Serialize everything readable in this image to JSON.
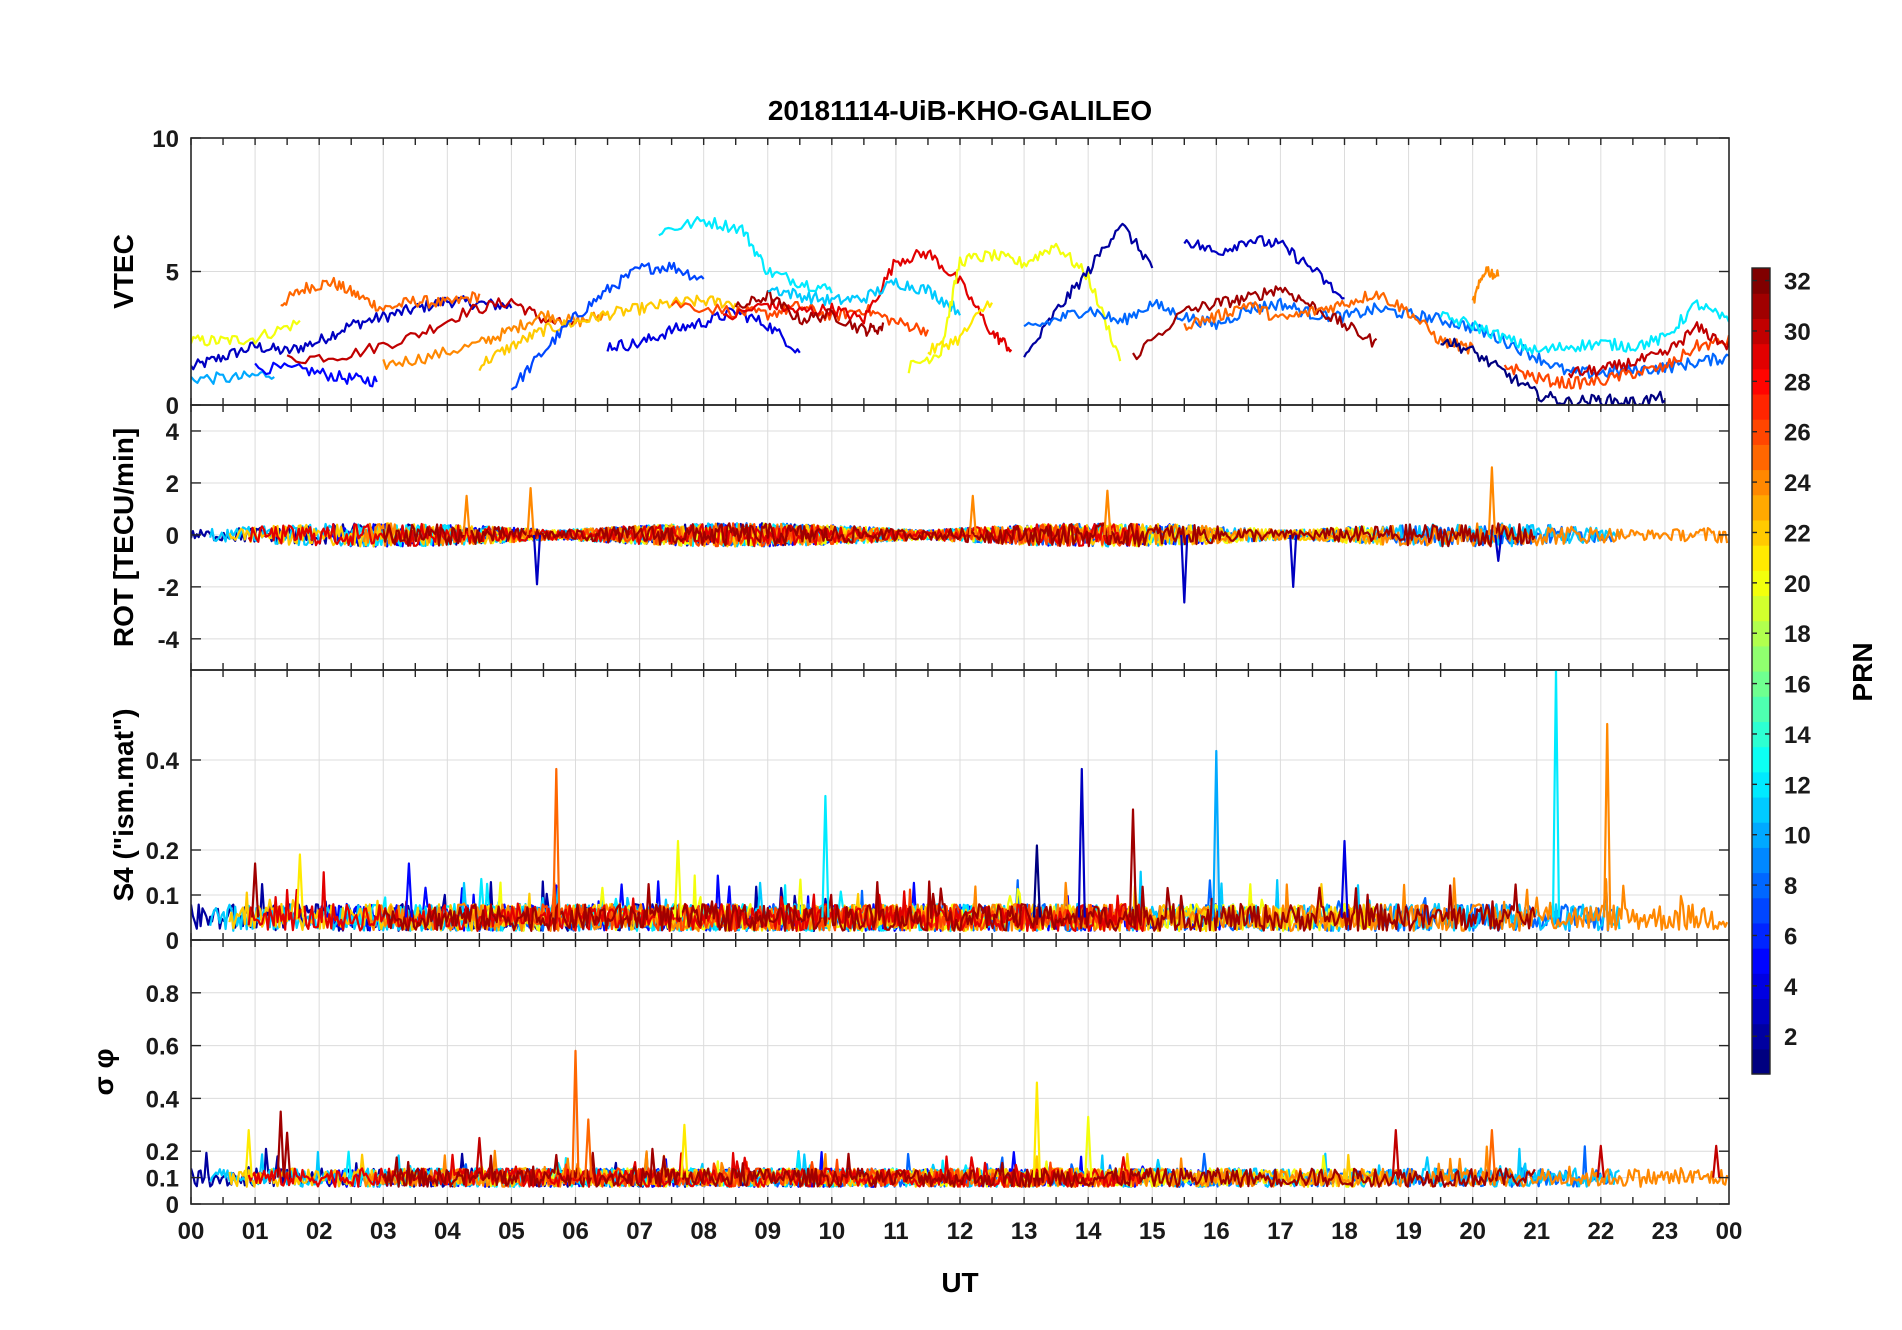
{
  "chart_data": {
    "type": "line",
    "title": "20181114-UiB-KHO-GALILEO",
    "xlabel": "UT",
    "x_range_hours": [
      0,
      24
    ],
    "x_tick_labels": [
      "00",
      "01",
      "02",
      "03",
      "04",
      "05",
      "06",
      "07",
      "08",
      "09",
      "10",
      "11",
      "12",
      "13",
      "14",
      "15",
      "16",
      "17",
      "18",
      "19",
      "20",
      "21",
      "22",
      "23",
      "00"
    ],
    "grid": true,
    "colorbar": {
      "label": "PRN",
      "range": [
        1,
        32
      ],
      "tick_labels": [
        "2",
        "4",
        "6",
        "8",
        "10",
        "12",
        "14",
        "16",
        "18",
        "20",
        "22",
        "24",
        "26",
        "28",
        "30",
        "32"
      ],
      "colormap": "jet",
      "placement": "right"
    },
    "panels": [
      {
        "ylabel": "VTEC",
        "ylim": [
          0,
          10
        ],
        "y_ticks": [
          0,
          5,
          10
        ],
        "series": [
          {
            "prn": 3,
            "x": [
              0.0,
              0.5,
              1.0,
              1.5,
              2.0,
              2.5,
              3.0,
              3.5,
              4.0,
              4.5,
              5.0
            ],
            "y": [
              1.4,
              1.8,
              2.2,
              2.0,
              2.4,
              3.0,
              3.3,
              3.6,
              3.9,
              3.8,
              3.7
            ]
          },
          {
            "prn": 25,
            "x": [
              1.4,
              1.8,
              2.2,
              2.6,
              3.0,
              3.5,
              4.0,
              4.5
            ],
            "y": [
              3.8,
              4.4,
              4.6,
              4.1,
              3.6,
              3.9,
              3.8,
              4.1
            ]
          },
          {
            "prn": 20,
            "x": [
              0.0,
              0.5,
              1.0,
              1.7
            ],
            "y": [
              2.4,
              2.4,
              2.5,
              3.1
            ]
          },
          {
            "prn": 10,
            "x": [
              0.0,
              0.7,
              1.3
            ],
            "y": [
              1.0,
              1.0,
              1.2
            ]
          },
          {
            "prn": 5,
            "x": [
              1.0,
              1.8,
              2.4,
              2.9
            ],
            "y": [
              1.4,
              1.3,
              1.0,
              0.9
            ]
          },
          {
            "prn": 30,
            "x": [
              1.5,
              2.5,
              3.5,
              4.3,
              5.0,
              5.5,
              6.0
            ],
            "y": [
              1.7,
              1.9,
              2.6,
              3.5,
              3.9,
              3.2,
              2.9
            ]
          },
          {
            "prn": 24,
            "x": [
              3.0,
              3.7,
              4.5,
              5.0,
              5.5,
              6.0,
              6.5
            ],
            "y": [
              1.5,
              1.8,
              2.3,
              2.8,
              3.4,
              3.1,
              3.4
            ]
          },
          {
            "prn": 22,
            "x": [
              4.5,
              5.0,
              5.5,
              6.0,
              6.5,
              7.0,
              7.5,
              8.0,
              8.5
            ],
            "y": [
              1.5,
              2.2,
              2.8,
              3.1,
              3.4,
              3.6,
              3.8,
              3.9,
              3.8
            ]
          },
          {
            "prn": 7,
            "x": [
              5.0,
              5.5,
              6.0,
              6.5,
              7.0,
              7.5,
              8.0
            ],
            "y": [
              0.6,
              2.0,
              3.3,
              4.3,
              5.1,
              5.2,
              4.7
            ]
          },
          {
            "prn": 12,
            "x": [
              7.3,
              8.0,
              8.6,
              9.0,
              9.5,
              10.0
            ],
            "y": [
              6.5,
              6.9,
              6.6,
              5.0,
              4.6,
              4.3
            ]
          },
          {
            "prn": 4,
            "x": [
              6.5,
              7.0,
              7.5,
              8.0,
              8.5,
              9.0,
              9.5
            ],
            "y": [
              2.2,
              2.3,
              2.8,
              3.1,
              3.5,
              3.0,
              2.0
            ]
          },
          {
            "prn": 26,
            "x": [
              7.5,
              8.5,
              9.0,
              9.5,
              10.0,
              10.5,
              11.0,
              11.5
            ],
            "y": [
              3.8,
              3.5,
              3.4,
              3.7,
              3.3,
              3.6,
              3.1,
              2.8
            ]
          },
          {
            "prn": 29,
            "x": [
              8.3,
              9.0,
              9.5,
              10.0,
              10.5,
              11.0,
              11.5,
              12.0,
              12.5,
              12.8
            ],
            "y": [
              3.2,
              3.8,
              3.5,
              3.6,
              3.2,
              5.4,
              5.7,
              4.6,
              2.7,
              2.1
            ]
          },
          {
            "prn": 31,
            "x": [
              8.5,
              9.0,
              9.5,
              10.0,
              10.5,
              10.8
            ],
            "y": [
              3.6,
              4.1,
              3.2,
              3.4,
              2.8,
              2.9
            ]
          },
          {
            "prn": 11,
            "x": [
              9.0,
              9.5,
              10.0,
              10.5,
              11.0,
              11.5,
              12.0
            ],
            "y": [
              4.4,
              4.1,
              3.9,
              4.0,
              4.6,
              4.3,
              3.5
            ]
          },
          {
            "prn": 20,
            "x": [
              11.2,
              11.7,
              12.0,
              12.5,
              13.0,
              13.5,
              14.0,
              14.5
            ],
            "y": [
              1.4,
              2.0,
              5.4,
              5.6,
              5.3,
              6.0,
              4.8,
              1.7
            ]
          },
          {
            "prn": 21,
            "x": [
              11.5,
              12.0,
              12.5
            ],
            "y": [
              2.0,
              2.5,
              4.0
            ]
          },
          {
            "prn": 2,
            "x": [
              13.0,
              13.5,
              14.0,
              14.5,
              15.0
            ],
            "y": [
              1.7,
              3.5,
              5.0,
              6.8,
              5.2
            ]
          },
          {
            "prn": 8,
            "x": [
              13.0,
              13.5,
              14.0,
              14.5,
              15.0,
              15.5,
              16.0,
              16.5,
              17.0,
              17.5,
              18.0,
              18.5,
              19.0,
              19.5,
              20.0,
              20.5,
              21.0,
              21.5,
              22.0,
              22.5,
              23.0,
              23.5,
              24.0
            ],
            "y": [
              2.8,
              3.2,
              3.6,
              3.1,
              3.8,
              3.3,
              3.0,
              3.6,
              3.8,
              3.4,
              3.3,
              3.6,
              3.4,
              3.2,
              2.9,
              2.4,
              1.8,
              1.2,
              1.2,
              1.3,
              1.4,
              1.6,
              1.8
            ]
          },
          {
            "prn": 3,
            "x": [
              15.5,
              16.0,
              16.5,
              17.0,
              17.5,
              18.0
            ],
            "y": [
              6.2,
              5.7,
              6.2,
              6.0,
              5.1,
              3.9
            ]
          },
          {
            "prn": 31,
            "x": [
              14.7,
              15.5,
              16.0,
              16.5,
              17.0,
              17.5,
              18.0,
              18.5
            ],
            "y": [
              1.8,
              3.5,
              3.8,
              4.0,
              4.4,
              3.7,
              3.0,
              2.3
            ]
          },
          {
            "prn": 25,
            "x": [
              15.5,
              16.0,
              16.5,
              17.0,
              17.5,
              18.0,
              18.5,
              19.0,
              19.5,
              20.0
            ],
            "y": [
              3.0,
              3.3,
              3.8,
              3.2,
              3.5,
              3.8,
              4.2,
              3.5,
              2.4,
              2.1
            ]
          },
          {
            "prn": 24,
            "x": [
              20.0,
              20.2,
              20.4
            ],
            "y": [
              3.8,
              5.1,
              4.8
            ]
          },
          {
            "prn": 1,
            "x": [
              19.5,
              20.0,
              20.5,
              21.0,
              21.5,
              22.0,
              22.5,
              23.0
            ],
            "y": [
              2.5,
              2.0,
              1.2,
              0.4,
              0.1,
              0.2,
              0.1,
              0.3
            ]
          },
          {
            "prn": 12,
            "x": [
              19.5,
              20.0,
              20.5,
              21.0,
              21.5,
              22.0,
              22.5,
              23.0,
              23.5,
              24.0
            ],
            "y": [
              3.3,
              3.0,
              2.5,
              2.0,
              2.2,
              2.3,
              2.2,
              2.5,
              3.8,
              3.1
            ]
          },
          {
            "prn": 26,
            "x": [
              20.5,
              21.0,
              21.5,
              22.0,
              22.5,
              23.0,
              23.5,
              24.0
            ],
            "y": [
              1.5,
              1.0,
              0.8,
              0.9,
              1.2,
              1.4,
              2.2,
              2.4
            ]
          },
          {
            "prn": 30,
            "x": [
              21.5,
              22.0,
              22.5,
              23.0,
              23.5,
              24.0
            ],
            "y": [
              1.2,
              1.3,
              1.6,
              1.9,
              2.9,
              2.2
            ]
          }
        ]
      },
      {
        "ylabel": "ROT [TECU/min]",
        "ylim": [
          -5.2,
          5.0
        ],
        "y_ticks": [
          -4,
          -2,
          0,
          2,
          4
        ],
        "notable_values": [
          {
            "x": 4.3,
            "y": 1.5
          },
          {
            "x": 5.3,
            "y": 1.8
          },
          {
            "x": 5.4,
            "y": -1.9
          },
          {
            "x": 12.2,
            "y": 1.5
          },
          {
            "x": 14.3,
            "y": 1.7
          },
          {
            "x": 15.5,
            "y": -2.6
          },
          {
            "x": 17.2,
            "y": -2.0
          },
          {
            "x": 20.3,
            "y": 2.6
          },
          {
            "x": 20.4,
            "y": -1.0
          }
        ]
      },
      {
        "ylabel": "S4 (\"ism.mat\")",
        "ylim": [
          0,
          0.6
        ],
        "y_ticks": [
          0,
          0.1,
          0.2,
          0.4
        ],
        "spikes": [
          {
            "prn": 31,
            "x": 1.0,
            "y": 0.17
          },
          {
            "prn": 21,
            "x": 1.7,
            "y": 0.19
          },
          {
            "prn": 5,
            "x": 3.4,
            "y": 0.17
          },
          {
            "prn": 25,
            "x": 5.7,
            "y": 0.38
          },
          {
            "prn": 20,
            "x": 7.6,
            "y": 0.22
          },
          {
            "prn": 12,
            "x": 9.9,
            "y": 0.32
          },
          {
            "prn": 1,
            "x": 13.2,
            "y": 0.21
          },
          {
            "prn": 3,
            "x": 13.9,
            "y": 0.38
          },
          {
            "prn": 31,
            "x": 14.7,
            "y": 0.29
          },
          {
            "prn": 10,
            "x": 16.0,
            "y": 0.42
          },
          {
            "prn": 4,
            "x": 18.0,
            "y": 0.22
          },
          {
            "prn": 12,
            "x": 21.3,
            "y": 0.6
          },
          {
            "prn": 24,
            "x": 22.1,
            "y": 0.48
          }
        ]
      },
      {
        "ylabel": "σ φ",
        "ylim": [
          0,
          1.0
        ],
        "y_ticks": [
          0,
          0.1,
          0.2,
          0.4,
          0.6,
          0.8
        ],
        "spikes": [
          {
            "prn": 21,
            "x": 0.9,
            "y": 0.28
          },
          {
            "prn": 31,
            "x": 1.4,
            "y": 0.35
          },
          {
            "prn": 31,
            "x": 1.5,
            "y": 0.27
          },
          {
            "prn": 30,
            "x": 4.5,
            "y": 0.25
          },
          {
            "prn": 25,
            "x": 6.0,
            "y": 0.58
          },
          {
            "prn": 25,
            "x": 6.2,
            "y": 0.32
          },
          {
            "prn": 21,
            "x": 7.7,
            "y": 0.3
          },
          {
            "prn": 21,
            "x": 13.2,
            "y": 0.46
          },
          {
            "prn": 20,
            "x": 14.0,
            "y": 0.33
          },
          {
            "prn": 30,
            "x": 18.8,
            "y": 0.28
          },
          {
            "prn": 25,
            "x": 20.3,
            "y": 0.28
          },
          {
            "prn": 30,
            "x": 22.0,
            "y": 0.22
          },
          {
            "prn": 30,
            "x": 23.8,
            "y": 0.22
          }
        ]
      }
    ]
  }
}
